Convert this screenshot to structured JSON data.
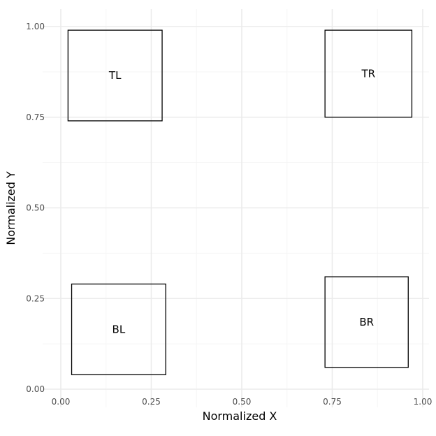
{
  "chart_data": {
    "type": "rectangles",
    "title": "",
    "xlabel": "Normalized X",
    "ylabel": "Normalized Y",
    "xlim": [
      0,
      1
    ],
    "ylim": [
      0,
      1
    ],
    "x_ticks": [
      0.0,
      0.25,
      0.5,
      0.75,
      1.0
    ],
    "y_ticks": [
      0.0,
      0.25,
      0.5,
      0.75,
      1.0
    ],
    "x_tick_labels": [
      "0.00",
      "0.25",
      "0.50",
      "0.75",
      "1.00"
    ],
    "y_tick_labels": [
      "0.00",
      "0.25",
      "0.50",
      "0.75",
      "1.00"
    ],
    "grid": true,
    "theme": "minimal",
    "boxes": [
      {
        "label": "TL",
        "xmin": 0.02,
        "xmax": 0.28,
        "ymin": 0.74,
        "ymax": 0.99
      },
      {
        "label": "TR",
        "xmin": 0.73,
        "xmax": 0.97,
        "ymin": 0.75,
        "ymax": 0.99
      },
      {
        "label": "BL",
        "xmin": 0.03,
        "xmax": 0.29,
        "ymin": 0.04,
        "ymax": 0.29
      },
      {
        "label": "BR",
        "xmin": 0.73,
        "xmax": 0.96,
        "ymin": 0.06,
        "ymax": 0.31
      }
    ],
    "colors": {
      "box_stroke": "#000000",
      "box_fill": "none",
      "grid_major": "#ebebeb",
      "grid_minor": "#f5f5f5",
      "tick_text": "#4d4d4d",
      "axis_text": "#000000"
    }
  }
}
